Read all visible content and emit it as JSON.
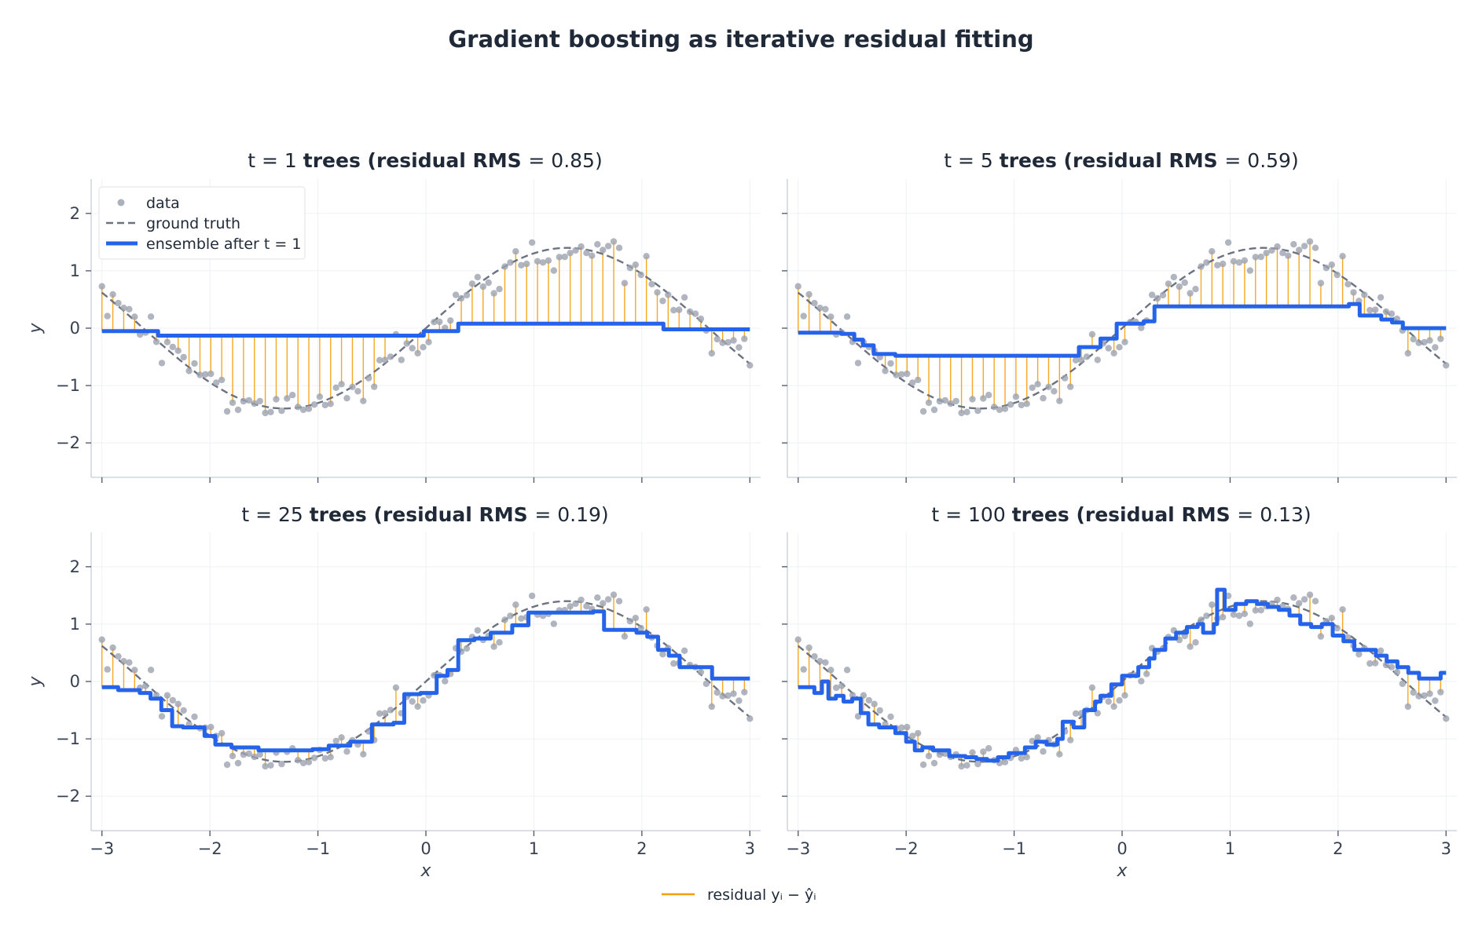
{
  "figure_title": "Gradient boosting as iterative residual fitting",
  "footer_legend": {
    "label": "residual yᵢ − ŷᵢ",
    "color": "#f59e0b"
  },
  "colors": {
    "data": "#9ca3af",
    "truth": "#6b7280",
    "ensemble": "#2563eb",
    "residual": "#f59e0b"
  },
  "chart_data": [
    {
      "type": "line",
      "title_prefix": "t = 1 ",
      "title_bold": "trees   (residual RMS ",
      "title_value": "= 0.85)",
      "t": 1,
      "rms": 0.85,
      "xlabel": "",
      "ylabel": "y",
      "xlim": [
        -3.1,
        3.1
      ],
      "ylim": [
        -2.6,
        2.6
      ],
      "xticks": [
        -3,
        -2,
        -1,
        0,
        1,
        2,
        3
      ],
      "yticks": [
        -2,
        -1,
        0,
        1,
        2
      ],
      "grid": true,
      "legend": {
        "position": "upper-left",
        "entries": [
          "data",
          "ground truth",
          "ensemble after t = 1"
        ]
      },
      "series": [
        {
          "name": "ensemble after t = 1",
          "kind": "step",
          "x": [
            -3.0,
            -2.6,
            -2.48,
            -0.33,
            -0.02,
            0.3,
            2.0,
            2.2,
            3.0
          ],
          "y": [
            -0.05,
            -0.05,
            -0.13,
            -0.13,
            -0.05,
            0.08,
            0.08,
            -0.02,
            -0.02
          ]
        }
      ]
    },
    {
      "type": "line",
      "title_prefix": "t = 5 ",
      "title_bold": "trees   (residual RMS ",
      "title_value": "= 0.59)",
      "t": 5,
      "rms": 0.59,
      "xlabel": "",
      "ylabel": "",
      "xlim": [
        -3.1,
        3.1
      ],
      "ylim": [
        -2.6,
        2.6
      ],
      "xticks": [
        -3,
        -2,
        -1,
        0,
        1,
        2,
        3
      ],
      "yticks": [
        -2,
        -1,
        0,
        1,
        2
      ],
      "grid": true,
      "series": [
        {
          "name": "ensemble after t = 5",
          "kind": "step",
          "x": [
            -3.0,
            -2.75,
            -2.6,
            -2.48,
            -2.4,
            -2.3,
            -2.2,
            -2.1,
            -0.6,
            -0.4,
            -0.2,
            -0.05,
            0.2,
            0.3,
            2.1,
            2.2,
            2.4,
            2.5,
            2.6,
            3.0
          ],
          "y": [
            -0.08,
            -0.08,
            -0.1,
            -0.2,
            -0.3,
            -0.45,
            -0.45,
            -0.48,
            -0.48,
            -0.33,
            -0.18,
            0.08,
            0.12,
            0.38,
            0.42,
            0.22,
            0.15,
            0.1,
            0.0,
            0.0
          ]
        }
      ]
    },
    {
      "type": "line",
      "title_prefix": "t = 25 ",
      "title_bold": "trees   (residual RMS ",
      "title_value": "= 0.19)",
      "t": 25,
      "rms": 0.19,
      "xlabel": "x",
      "ylabel": "y",
      "xlim": [
        -3.1,
        3.1
      ],
      "ylim": [
        -2.6,
        2.6
      ],
      "xticks": [
        -3,
        -2,
        -1,
        0,
        1,
        2,
        3
      ],
      "yticks": [
        -2,
        -1,
        0,
        1,
        2
      ],
      "grid": true,
      "series": [
        {
          "name": "ensemble after t = 25",
          "kind": "step",
          "x": [
            -3.0,
            -2.85,
            -2.65,
            -2.55,
            -2.45,
            -2.35,
            -2.25,
            -2.05,
            -1.95,
            -1.8,
            -1.55,
            -1.05,
            -0.9,
            -0.7,
            -0.5,
            -0.3,
            -0.2,
            -0.05,
            0.1,
            0.2,
            0.3,
            0.45,
            0.6,
            0.8,
            0.95,
            1.55,
            1.65,
            1.95,
            2.05,
            2.15,
            2.25,
            2.35,
            2.5,
            2.65,
            2.75,
            3.0
          ],
          "y": [
            -0.1,
            -0.15,
            -0.2,
            -0.3,
            -0.5,
            -0.78,
            -0.8,
            -0.95,
            -1.1,
            -1.15,
            -1.2,
            -1.18,
            -1.12,
            -1.05,
            -0.75,
            -0.72,
            -0.22,
            -0.2,
            0.1,
            0.2,
            0.72,
            0.75,
            0.85,
            0.98,
            1.2,
            1.22,
            0.9,
            0.85,
            0.78,
            0.55,
            0.45,
            0.25,
            0.25,
            0.05,
            0.05,
            0.05
          ]
        }
      ]
    },
    {
      "type": "line",
      "title_prefix": "t = 100 ",
      "title_bold": "trees   (residual RMS ",
      "title_value": "= 0.13)",
      "t": 100,
      "rms": 0.13,
      "xlabel": "x",
      "ylabel": "",
      "xlim": [
        -3.1,
        3.1
      ],
      "ylim": [
        -2.6,
        2.6
      ],
      "xticks": [
        -3,
        -2,
        -1,
        0,
        1,
        2,
        3
      ],
      "yticks": [
        -2,
        -1,
        0,
        1,
        2
      ],
      "grid": true,
      "series": [
        {
          "name": "ensemble after t = 100",
          "kind": "step",
          "x": [
            -3.0,
            -2.85,
            -2.78,
            -2.72,
            -2.65,
            -2.58,
            -2.5,
            -2.42,
            -2.35,
            -2.25,
            -2.1,
            -2.0,
            -1.92,
            -1.85,
            -1.75,
            -1.6,
            -1.45,
            -1.35,
            -1.25,
            -1.15,
            -1.05,
            -0.9,
            -0.8,
            -0.7,
            -0.6,
            -0.55,
            -0.45,
            -0.35,
            -0.25,
            -0.2,
            -0.1,
            0.0,
            0.15,
            0.25,
            0.3,
            0.4,
            0.5,
            0.6,
            0.7,
            0.75,
            0.85,
            0.88,
            0.95,
            1.05,
            1.15,
            1.25,
            1.35,
            1.45,
            1.55,
            1.65,
            1.75,
            1.85,
            1.95,
            2.05,
            2.15,
            2.25,
            2.35,
            2.45,
            2.55,
            2.65,
            2.75,
            2.85,
            2.95,
            3.0
          ],
          "y": [
            -0.1,
            -0.2,
            0.0,
            -0.3,
            -0.25,
            -0.35,
            -0.3,
            -0.55,
            -0.75,
            -0.8,
            -0.9,
            -1.05,
            -1.2,
            -1.15,
            -1.2,
            -1.3,
            -1.32,
            -1.35,
            -1.38,
            -1.32,
            -1.25,
            -1.15,
            -1.05,
            -1.1,
            -1.0,
            -0.7,
            -0.8,
            -0.5,
            -0.35,
            -0.25,
            -0.05,
            0.1,
            0.25,
            0.4,
            0.55,
            0.75,
            0.85,
            0.95,
            1.0,
            0.85,
            1.0,
            1.6,
            1.25,
            1.35,
            1.4,
            1.35,
            1.3,
            1.25,
            1.15,
            1.0,
            0.95,
            1.0,
            0.8,
            0.7,
            0.55,
            0.55,
            0.45,
            0.35,
            0.25,
            0.15,
            0.05,
            0.05,
            0.15,
            0.15
          ]
        }
      ]
    }
  ]
}
